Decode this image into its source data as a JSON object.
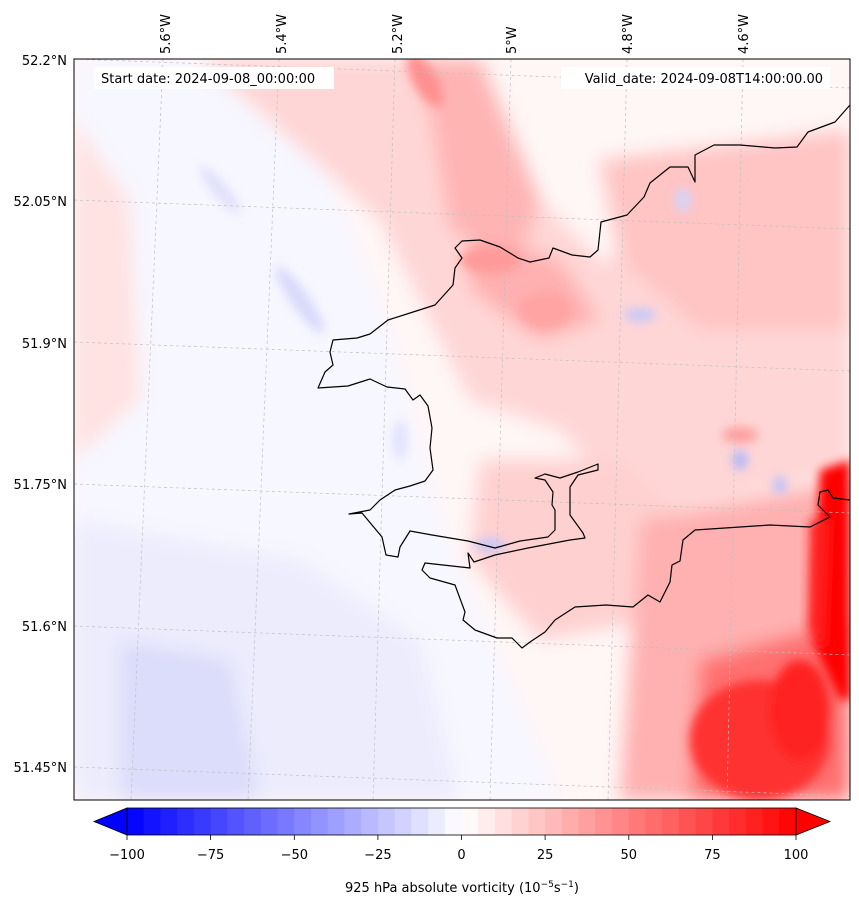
{
  "map": {
    "start_date_label": "Start date: 2024-09-08_00:00:00",
    "valid_date_label": "Valid_date: 2024-09-08T14:00:00.00",
    "lon_labels": [
      "5.6°W",
      "5.4°W",
      "5.2°W",
      "5°W",
      "4.8°W",
      "4.6°W"
    ],
    "lat_labels": [
      "52.2°N",
      "52.05°N",
      "51.9°N",
      "51.75°N",
      "51.6°N",
      "51.45°N"
    ],
    "field": "925 hPa absolute vorticity",
    "gridlines": "dashed, light grey"
  },
  "colorbar": {
    "label_main": "925 hPa absolute vorticity (10",
    "label_exp1": "−5",
    "label_mid": "s",
    "label_exp2": "−1",
    "label_close": ")",
    "ticks": [
      "−100",
      "−75",
      "−50",
      "−25",
      "0",
      "25",
      "50",
      "75",
      "100"
    ],
    "range": [
      -100,
      100
    ],
    "colormap": "bwr",
    "negative_color": "#0000ff",
    "zero_color": "#ffffff",
    "positive_color": "#ff0000"
  }
}
